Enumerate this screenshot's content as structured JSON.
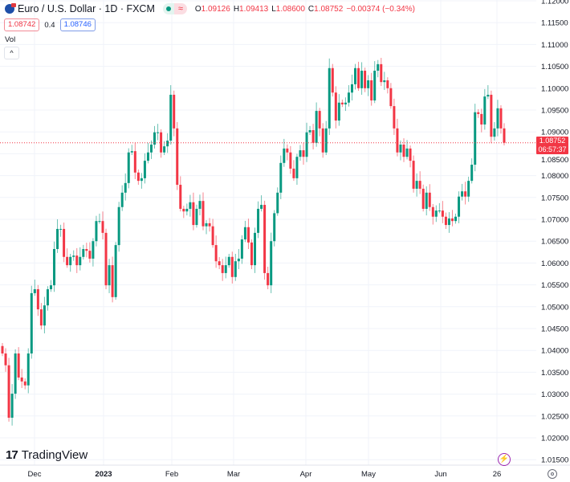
{
  "header": {
    "symbol": "Euro / U.S. Dollar · 1D · FXCM",
    "status_icon": "market-open-dot",
    "eq_label": "≈",
    "ohlc": [
      {
        "key": "O",
        "value": "1.09126"
      },
      {
        "key": "H",
        "value": "1.09413"
      },
      {
        "key": "L",
        "value": "1.08600"
      },
      {
        "key": "C",
        "value": "1.08752"
      },
      {
        "key": "",
        "value": "−0.00374 (−0.34%)"
      }
    ],
    "sell_price": "1.08742",
    "spread": "0.4",
    "buy_price": "1.08746",
    "vol_label": "Vol",
    "collapse_icon": "chevron-up-icon"
  },
  "price_axis": {
    "labels": [
      "1.12000",
      "1.11500",
      "1.11000",
      "1.10500",
      "1.10000",
      "1.09500",
      "1.09000",
      "1.08500",
      "1.08000",
      "1.07500",
      "1.07000",
      "1.06500",
      "1.06000",
      "1.05500",
      "1.05000",
      "1.04500",
      "1.04000",
      "1.03500",
      "1.03000",
      "1.02500",
      "1.02000",
      "1.01500"
    ],
    "last_price": "1.08752",
    "countdown": "06:57:37"
  },
  "time_axis": {
    "labels": [
      {
        "text": "Dec",
        "bold": false
      },
      {
        "text": "2023",
        "bold": true
      },
      {
        "text": "Feb",
        "bold": false
      },
      {
        "text": "Mar",
        "bold": false
      },
      {
        "text": "Apr",
        "bold": false
      },
      {
        "text": "May",
        "bold": false
      },
      {
        "text": "Jun",
        "bold": false
      },
      {
        "text": "26",
        "bold": false
      }
    ]
  },
  "branding": {
    "logo_text": "TradingView"
  },
  "colors": {
    "up": "#089981",
    "down": "#f23645",
    "grid": "#f0f3fa",
    "last_line": "#f23645"
  },
  "chart_data": {
    "type": "candlestick",
    "title": "Euro / U.S. Dollar · 1D · FXCM",
    "ylim": [
      1.015,
      1.12
    ],
    "x_range": "late Nov 2022 – late Jun 2023 (daily)",
    "first_open": 1.041,
    "close": [
      1.0393,
      1.0366,
      1.0246,
      1.0301,
      1.0393,
      1.0338,
      1.0329,
      1.032,
      1.0393,
      1.0531,
      1.054,
      1.0494,
      1.0457,
      1.0503,
      1.054,
      1.0549,
      1.0632,
      1.0678,
      1.0678,
      1.0614,
      1.0595,
      1.0614,
      1.0617,
      1.0595,
      1.0614,
      1.0632,
      1.0628,
      1.061,
      1.065,
      1.0696,
      1.0696,
      1.0669,
      1.0549,
      1.0595,
      1.0522,
      1.0641,
      1.0728,
      1.0761,
      1.0783,
      1.0853,
      1.0856,
      1.0807,
      1.0788,
      1.0794,
      1.0834,
      1.0853,
      1.0871,
      1.0899,
      1.0899,
      1.0853,
      1.0867,
      1.088,
      1.0985,
      1.0908,
      1.0779,
      1.0724,
      1.0718,
      1.0724,
      1.0739,
      1.0687,
      1.0724,
      1.0742,
      1.0684,
      1.0691,
      1.0684,
      1.0641,
      1.0604,
      1.0595,
      1.0577,
      1.0595,
      1.0614,
      1.0568,
      1.0604,
      1.061,
      1.0654,
      1.0682,
      1.0647,
      1.0595,
      1.0669,
      1.0724,
      1.0733,
      1.0577,
      1.0549,
      1.065,
      1.0714,
      1.0761,
      1.0829,
      1.0862,
      1.0853,
      1.0816,
      1.0794,
      1.0843,
      1.0858,
      1.0843,
      1.0899,
      1.0904,
      1.0875,
      1.0948,
      1.0908,
      1.0853,
      1.0908,
      1.1046,
      1.099,
      1.0926,
      1.0967,
      1.0963,
      1.0967,
      1.099,
      1.1009,
      1.1046,
      1.1,
      1.104,
      1.1,
      1.1018,
      1.0972,
      1.104,
      1.1055,
      1.1014,
      1.1018,
      1.1,
      1.0959,
      1.0908,
      1.0853,
      1.0871,
      1.0843,
      1.0862,
      1.0834,
      1.077,
      1.0788,
      1.077,
      1.0724,
      1.0761,
      1.0728,
      1.0706,
      1.072,
      1.072,
      1.0706,
      1.0687,
      1.0702,
      1.0696,
      1.0706,
      1.0752,
      1.0764,
      1.0752,
      1.0788,
      1.0825,
      1.0945,
      1.0941,
      1.0917,
      1.0981,
      1.0985,
      1.0889,
      1.0908,
      1.0954,
      1.0908,
      1.08752
    ]
  }
}
